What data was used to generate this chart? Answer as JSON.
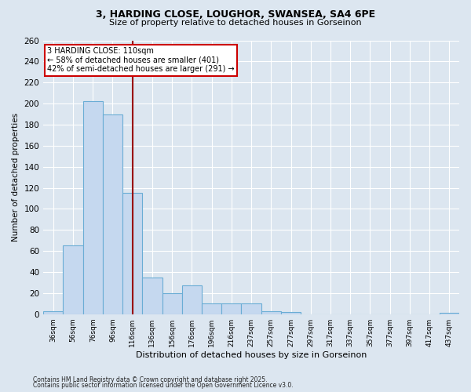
{
  "title1": "3, HARDING CLOSE, LOUGHOR, SWANSEA, SA4 6PE",
  "title2": "Size of property relative to detached houses in Gorseinon",
  "xlabel": "Distribution of detached houses by size in Gorseinon",
  "ylabel": "Number of detached properties",
  "bar_labels": [
    "36sqm",
    "56sqm",
    "76sqm",
    "96sqm",
    "116sqm",
    "136sqm",
    "156sqm",
    "176sqm",
    "196sqm",
    "216sqm",
    "237sqm",
    "257sqm",
    "277sqm",
    "297sqm",
    "317sqm",
    "337sqm",
    "357sqm",
    "377sqm",
    "397sqm",
    "417sqm",
    "437sqm"
  ],
  "bar_values": [
    3,
    65,
    202,
    190,
    115,
    35,
    20,
    27,
    10,
    10,
    10,
    3,
    2,
    0,
    0,
    0,
    0,
    0,
    0,
    0,
    1
  ],
  "bar_color": "#c5d8ef",
  "bar_edgecolor": "#6aadd5",
  "vline_x": 4.5,
  "vline_color": "#990000",
  "annotation_text": "3 HARDING CLOSE: 110sqm\n← 58% of detached houses are smaller (401)\n42% of semi-detached houses are larger (291) →",
  "annotation_box_facecolor": "#ffffff",
  "annotation_box_edgecolor": "#cc0000",
  "ylim": [
    0,
    260
  ],
  "yticks": [
    0,
    20,
    40,
    60,
    80,
    100,
    120,
    140,
    160,
    180,
    200,
    220,
    240,
    260
  ],
  "background_color": "#dce6f0",
  "grid_color": "#ffffff",
  "footnote1": "Contains HM Land Registry data © Crown copyright and database right 2025.",
  "footnote2": "Contains public sector information licensed under the Open Government Licence v3.0."
}
